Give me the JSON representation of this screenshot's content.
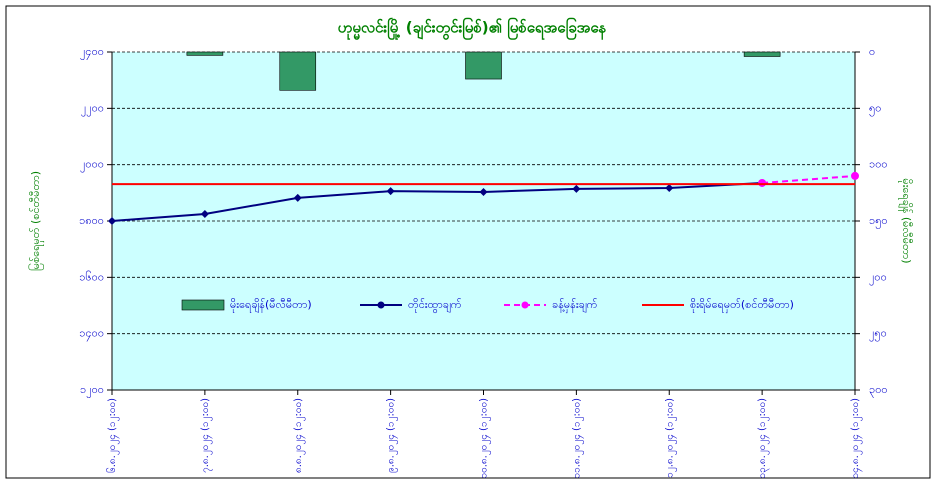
{
  "chart_data": {
    "type": "combo",
    "title": "ဟုမ္မလင်းမြို့ (ချင်းတွင်းမြစ်)၏ မြစ်ရေအခြေအနေ",
    "y_label": "မြစ်ရေမှတ် (စင်တီမီတာ)",
    "y2_label": "မိုးရေချိန် (မီလီမီတာ)",
    "categories": [
      "၆.၈.၂၀၂၄ (၁၂:၀၀)",
      "၇.၈.၂၀၂၄ (၁၂:၀၀)",
      "၈.၈.၂၀၂၄ (၁၂:၀၀)",
      "၉.၈.၂၀၂၄ (၁၂:၀၀)",
      "၁၀.၈.၂၀၂၄ (၁၂:၀၀)",
      "၁၁.၈.၂၀၂၄ (၁၂:၀၀)",
      "၁၂.၈.၂၀၂၄ (၁၂:၀၀)",
      "၁၃.၈.၂၀၂၄ (၁၂:၀၀)",
      "၁၄.၈.၂၀၂၄ (၁၂:၀၀)"
    ],
    "series": [
      {
        "name": "မိုးရေချိန်(မီလီမီတာ)",
        "type": "bar",
        "axis": "y2",
        "color": "#339966",
        "values": [
          0,
          3,
          34,
          0,
          24,
          0,
          0,
          4,
          0
        ]
      },
      {
        "name": "တိုင်းထွာချက်",
        "type": "line",
        "color": "#000080",
        "marker": "diamond",
        "values": [
          1800,
          1825,
          1882,
          1906,
          1903,
          1914,
          1917,
          1935,
          null
        ]
      },
      {
        "name": "ခန့်မှန်းချက်",
        "type": "line",
        "color": "#ff00ff",
        "dashed": true,
        "marker": "circle",
        "values": [
          null,
          null,
          null,
          null,
          null,
          null,
          null,
          1935,
          1960
        ]
      },
      {
        "name": "စိုးရိမ်ရေမှတ်(စင်တီမီတာ)",
        "type": "hline",
        "color": "#ff0000",
        "value": 1931
      }
    ],
    "ylim": [
      1200,
      2400
    ],
    "yticks": [
      {
        "value": 1200,
        "label": "၁၂၀၀"
      },
      {
        "value": 1400,
        "label": "၁၄၀၀"
      },
      {
        "value": 1600,
        "label": "၁၆၀၀"
      },
      {
        "value": 1800,
        "label": "၁၈၀၀"
      },
      {
        "value": 2000,
        "label": "၂၀၀၀"
      },
      {
        "value": 2200,
        "label": "၂၂၀၀"
      },
      {
        "value": 2400,
        "label": "၂၄၀၀"
      }
    ],
    "y2lim": [
      0,
      300
    ],
    "y2_reversed": true,
    "y2ticks": [
      {
        "value": 0,
        "label": "၀"
      },
      {
        "value": 50,
        "label": "၅၀"
      },
      {
        "value": 100,
        "label": "၁၀၀"
      },
      {
        "value": 150,
        "label": "၁၅၀"
      },
      {
        "value": 200,
        "label": "၂၀၀"
      },
      {
        "value": 250,
        "label": "၂၅၀"
      },
      {
        "value": 300,
        "label": "၃၀၀"
      }
    ],
    "grid": true,
    "plot_background": "#ccffff"
  }
}
